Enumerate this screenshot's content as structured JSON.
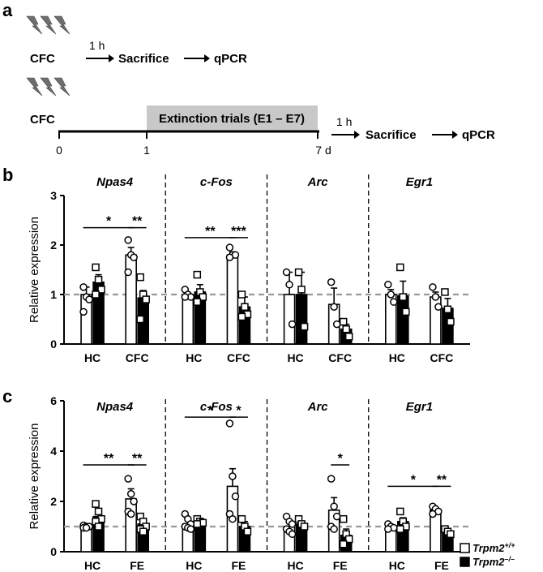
{
  "panel_labels": {
    "a": "a",
    "b": "b",
    "c": "c"
  },
  "schematic": {
    "row1": {
      "label": "CFC",
      "interval": "1 h",
      "step1": "Sacrifice",
      "step2": "qPCR"
    },
    "row2": {
      "label": "CFC",
      "box_text": "Extinction trials (E1 – E7)",
      "interval": "1 h",
      "step1": "Sacrifice",
      "step2": "qPCR",
      "ticks": [
        "0",
        "1",
        "7 d"
      ]
    }
  },
  "legend": {
    "wt": {
      "label": "Trpm2",
      "sup": "+/+"
    },
    "ko": {
      "label": "Trpm2",
      "sup": "–/–"
    }
  },
  "colors": {
    "wt_fill": "#ffffff",
    "ko_fill": "#000000",
    "reference_line": "#999999"
  },
  "chart_data": [
    {
      "type": "bar",
      "panel": "b",
      "ylabel": "Relative expression",
      "ylim": [
        0,
        3
      ],
      "yticks": [
        "0",
        "1",
        "2",
        "3"
      ],
      "reference_line": 1,
      "series_keys": [
        "wt",
        "ko"
      ],
      "genes": [
        {
          "name": "Npas4",
          "groups": [
            {
              "label": "HC",
              "wt": {
                "mean": 1.0,
                "err": 0.15,
                "points": [
                  1.15,
                  0.95,
                  0.9,
                  0.65
                ]
              },
              "ko": {
                "mean": 1.25,
                "err": 0.15,
                "points": [
                  1.55,
                  1.3,
                  1.1,
                  1.0
                ]
              }
            },
            {
              "label": "CFC",
              "wt": {
                "mean": 1.8,
                "err": 0.15,
                "points": [
                  2.1,
                  1.8,
                  1.75,
                  1.45
                ]
              },
              "ko": {
                "mean": 0.93,
                "err": 0.15,
                "points": [
                  1.35,
                  1.0,
                  0.9,
                  0.5
                ]
              }
            }
          ],
          "sig": [
            {
              "from": "HC.wt",
              "to": "CFC.wt",
              "label": "*",
              "level": 2.35
            },
            {
              "from": "CFC.wt",
              "to": "CFC.ko",
              "label": "**",
              "level": 2.35
            }
          ]
        },
        {
          "name": "c-Fos",
          "groups": [
            {
              "label": "HC",
              "wt": {
                "mean": 0.98,
                "err": 0.05,
                "points": [
                  1.1,
                  1.0,
                  0.95,
                  0.95
                ]
              },
              "ko": {
                "mean": 1.05,
                "err": 0.15,
                "points": [
                  1.4,
                  1.05,
                  0.95,
                  0.85
                ]
              }
            },
            {
              "label": "CFC",
              "wt": {
                "mean": 1.8,
                "err": 0.06,
                "points": [
                  1.95,
                  1.8,
                  1.8,
                  1.75
                ]
              },
              "ko": {
                "mean": 0.75,
                "err": 0.2,
                "points": [
                  1.0,
                  0.75,
                  0.6,
                  0.55
                ]
              }
            }
          ],
          "sig": [
            {
              "from": "HC.wt",
              "to": "CFC.wt",
              "label": "**",
              "level": 2.15
            },
            {
              "from": "CFC.wt",
              "to": "CFC.ko",
              "label": "***",
              "level": 2.15
            }
          ]
        },
        {
          "name": "Arc",
          "groups": [
            {
              "label": "HC",
              "wt": {
                "mean": 1.0,
                "err": 0.45,
                "points": [
                  1.45,
                  1.2,
                  0.4
                ]
              },
              "ko": {
                "mean": 1.0,
                "err": 0.45,
                "points": [
                  1.45,
                  1.1,
                  0.35
                ]
              }
            },
            {
              "label": "CFC",
              "wt": {
                "mean": 0.8,
                "err": 0.33,
                "points": [
                  1.25,
                  0.75,
                  0.4
                ]
              },
              "ko": {
                "mean": 0.3,
                "err": 0.1,
                "points": [
                  0.45,
                  0.3,
                  0.15
                ]
              }
            }
          ],
          "sig": []
        },
        {
          "name": "Egr1",
          "groups": [
            {
              "label": "HC",
              "wt": {
                "mean": 1.0,
                "err": 0.1,
                "points": [
                  1.2,
                  1.0,
                  0.85
                ]
              },
              "ko": {
                "mean": 0.97,
                "err": 0.3,
                "points": [
                  1.55,
                  0.95,
                  0.65
                ]
              }
            },
            {
              "label": "CFC",
              "wt": {
                "mean": 0.95,
                "err": 0.1,
                "points": [
                  1.15,
                  0.95,
                  0.75
                ]
              },
              "ko": {
                "mean": 0.72,
                "err": 0.2,
                "points": [
                  1.05,
                  0.7,
                  0.45
                ]
              }
            }
          ],
          "sig": []
        }
      ]
    },
    {
      "type": "bar",
      "panel": "c",
      "ylabel": "Relative expression",
      "ylim": [
        0,
        6
      ],
      "yticks": [
        "0",
        "2",
        "4",
        "6"
      ],
      "reference_line": 1,
      "series_keys": [
        "wt",
        "ko"
      ],
      "genes": [
        {
          "name": "Npas4",
          "groups": [
            {
              "label": "HC",
              "wt": {
                "mean": 1.0,
                "err": 0.05,
                "points": [
                  1.05,
                  1.0,
                  1.0,
                  0.95,
                  0.95
                ]
              },
              "ko": {
                "mean": 1.4,
                "err": 0.25,
                "points": [
                  1.9,
                  1.6,
                  1.3,
                  1.2,
                  1.0
                ]
              }
            },
            {
              "label": "FE",
              "wt": {
                "mean": 2.1,
                "err": 0.4,
                "points": [
                  2.9,
                  2.3,
                  2.0,
                  1.6,
                  1.5
                ]
              },
              "ko": {
                "mean": 1.1,
                "err": 0.15,
                "points": [
                  1.4,
                  1.2,
                  1.0,
                  0.9,
                  0.8
                ]
              }
            }
          ],
          "sig": [
            {
              "from": "HC.wt",
              "to": "FE.wt",
              "label": "**",
              "level": 3.45
            },
            {
              "from": "FE.wt",
              "to": "FE.ko",
              "label": "**",
              "level": 3.45
            }
          ]
        },
        {
          "name": "c-Fos",
          "groups": [
            {
              "label": "HC",
              "wt": {
                "mean": 1.1,
                "err": 0.15,
                "points": [
                  1.5,
                  1.3,
                  1.1,
                  1.0,
                  0.95,
                  0.9
                ]
              },
              "ko": {
                "mean": 1.2,
                "err": 0.1,
                "points": [
                  1.3,
                  1.2,
                  1.15,
                  1.1
                ]
              }
            },
            {
              "label": "FE",
              "wt": {
                "mean": 2.6,
                "err": 0.7,
                "points": [
                  5.1,
                  3.0,
                  2.2,
                  1.5,
                  1.3
                ]
              },
              "ko": {
                "mean": 1.0,
                "err": 0.2,
                "points": [
                  1.3,
                  1.0,
                  0.8
                ]
              }
            }
          ],
          "sig": [
            {
              "from": "HC.wt",
              "to": "FE.wt",
              "label": "*",
              "level": 5.35
            },
            {
              "from": "FE.wt",
              "to": "FE.ko",
              "label": "*",
              "level": 5.35
            }
          ]
        },
        {
          "name": "Arc",
          "groups": [
            {
              "label": "HC",
              "wt": {
                "mean": 1.0,
                "err": 0.15,
                "points": [
                  1.4,
                  1.2,
                  1.1,
                  0.9,
                  0.8,
                  0.7
                ]
              },
              "ko": {
                "mean": 1.1,
                "err": 0.1,
                "points": [
                  1.3,
                  1.1,
                  1.0
                ]
              }
            },
            {
              "label": "FE",
              "wt": {
                "mean": 1.65,
                "err": 0.5,
                "points": [
                  2.9,
                  1.8,
                  1.4,
                  1.0,
                  0.9
                ]
              },
              "ko": {
                "mean": 0.65,
                "err": 0.25,
                "points": [
                  1.3,
                  0.7,
                  0.5,
                  0.3
                ]
              }
            }
          ],
          "sig": [
            {
              "from": "FE.wt",
              "to": "FE.ko",
              "label": "*",
              "level": 3.45
            }
          ]
        },
        {
          "name": "Egr1",
          "groups": [
            {
              "label": "HC",
              "wt": {
                "mean": 1.0,
                "err": 0.06,
                "points": [
                  1.1,
                  1.0,
                  0.95,
                  0.9
                ]
              },
              "ko": {
                "mean": 1.2,
                "err": 0.15,
                "points": [
                  1.6,
                  1.2,
                  1.0,
                  0.9
                ]
              }
            },
            {
              "label": "FE",
              "wt": {
                "mean": 1.65,
                "err": 0.1,
                "points": [
                  1.8,
                  1.7,
                  1.6,
                  1.5
                ]
              },
              "ko": {
                "mean": 0.8,
                "err": 0.05,
                "points": [
                  0.9,
                  0.8,
                  0.7
                ]
              }
            }
          ],
          "sig": [
            {
              "from": "HC.wt",
              "to": "FE.wt",
              "label": "*",
              "level": 2.6
            },
            {
              "from": "FE.wt",
              "to": "FE.ko",
              "label": "**",
              "level": 2.6
            }
          ]
        }
      ]
    }
  ]
}
